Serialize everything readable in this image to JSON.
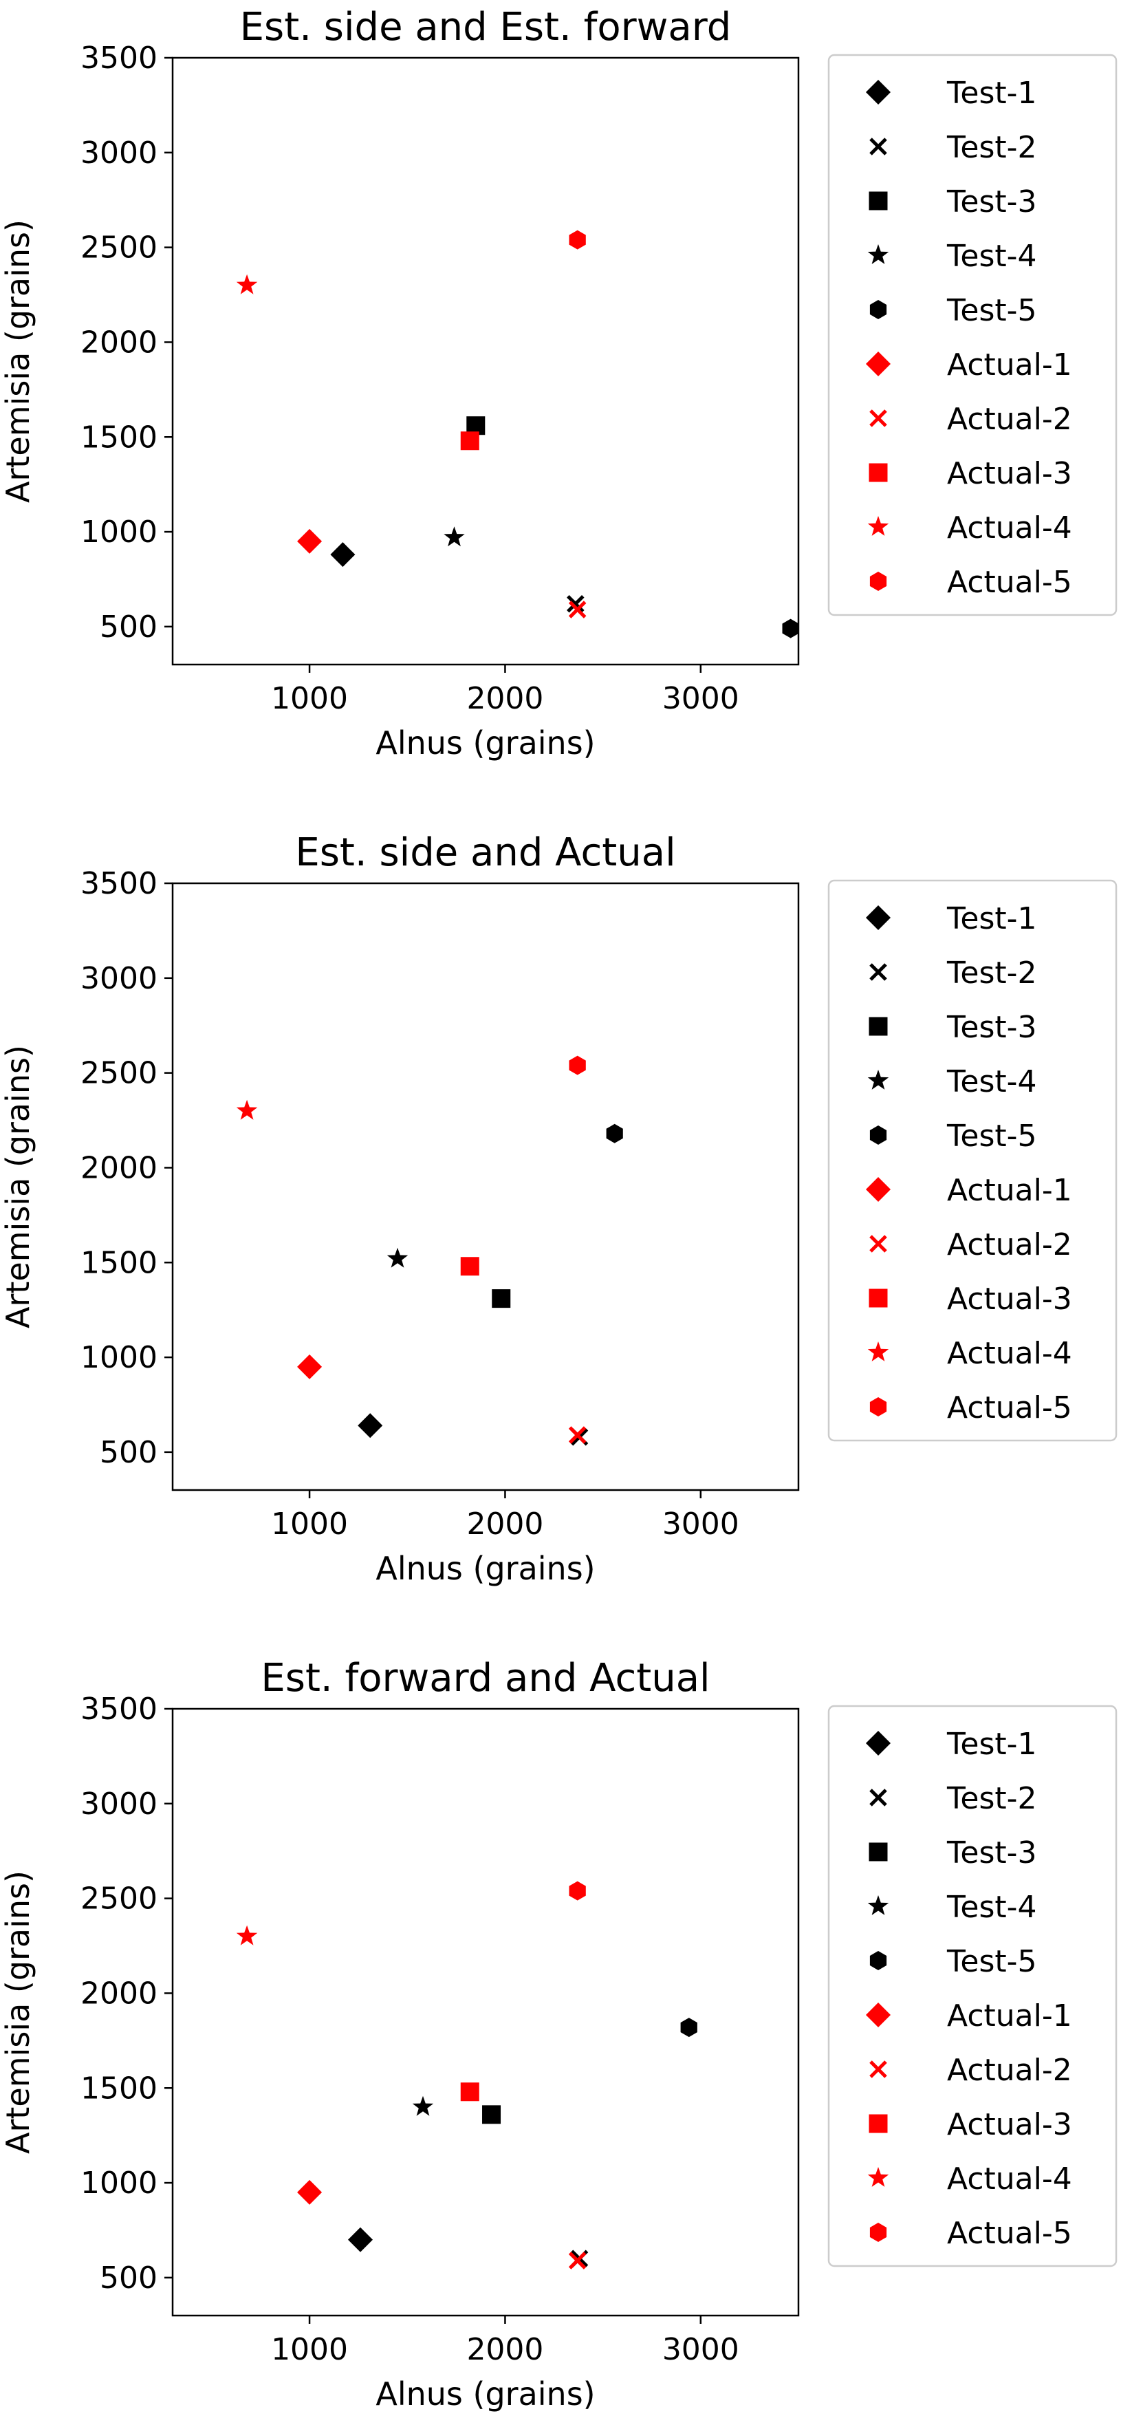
{
  "chart_data": [
    {
      "type": "scatter",
      "title": "Est. side and Est. forward",
      "xlabel": "Alnus (grains)",
      "ylabel": "Artemisia (grains)",
      "xlim": [
        300,
        3500
      ],
      "ylim": [
        300,
        3500
      ],
      "xticks": [
        1000,
        2000,
        3000
      ],
      "yticks": [
        500,
        1000,
        1500,
        2000,
        2500,
        3000,
        3500
      ],
      "grid": false,
      "legend_position": "outside-right",
      "series": [
        {
          "name": "Test-1",
          "marker": "diamond",
          "color": "#000000",
          "x": 1170,
          "y": 880
        },
        {
          "name": "Test-2",
          "marker": "x",
          "color": "#000000",
          "x": 2360,
          "y": 620
        },
        {
          "name": "Test-3",
          "marker": "square",
          "color": "#000000",
          "x": 1850,
          "y": 1560
        },
        {
          "name": "Test-4",
          "marker": "star",
          "color": "#000000",
          "x": 1740,
          "y": 970
        },
        {
          "name": "Test-5",
          "marker": "hexagon",
          "color": "#000000",
          "x": 3460,
          "y": 490
        },
        {
          "name": "Actual-1",
          "marker": "diamond",
          "color": "#ff0000",
          "x": 1000,
          "y": 950
        },
        {
          "name": "Actual-2",
          "marker": "x",
          "color": "#ff0000",
          "x": 2370,
          "y": 590
        },
        {
          "name": "Actual-3",
          "marker": "square",
          "color": "#ff0000",
          "x": 1820,
          "y": 1480
        },
        {
          "name": "Actual-4",
          "marker": "star",
          "color": "#ff0000",
          "x": 680,
          "y": 2300
        },
        {
          "name": "Actual-5",
          "marker": "hexagon",
          "color": "#ff0000",
          "x": 2370,
          "y": 2540
        }
      ]
    },
    {
      "type": "scatter",
      "title": "Est. side and Actual",
      "xlabel": "Alnus (grains)",
      "ylabel": "Artemisia (grains)",
      "xlim": [
        300,
        3500
      ],
      "ylim": [
        300,
        3500
      ],
      "xticks": [
        1000,
        2000,
        3000
      ],
      "yticks": [
        500,
        1000,
        1500,
        2000,
        2500,
        3000,
        3500
      ],
      "grid": false,
      "legend_position": "outside-right",
      "series": [
        {
          "name": "Test-1",
          "marker": "diamond",
          "color": "#000000",
          "x": 1310,
          "y": 640
        },
        {
          "name": "Test-2",
          "marker": "x",
          "color": "#000000",
          "x": 2380,
          "y": 580
        },
        {
          "name": "Test-3",
          "marker": "square",
          "color": "#000000",
          "x": 1980,
          "y": 1310
        },
        {
          "name": "Test-4",
          "marker": "star",
          "color": "#000000",
          "x": 1450,
          "y": 1520
        },
        {
          "name": "Test-5",
          "marker": "hexagon",
          "color": "#000000",
          "x": 2560,
          "y": 2180
        },
        {
          "name": "Actual-1",
          "marker": "diamond",
          "color": "#ff0000",
          "x": 1000,
          "y": 950
        },
        {
          "name": "Actual-2",
          "marker": "x",
          "color": "#ff0000",
          "x": 2370,
          "y": 590
        },
        {
          "name": "Actual-3",
          "marker": "square",
          "color": "#ff0000",
          "x": 1820,
          "y": 1480
        },
        {
          "name": "Actual-4",
          "marker": "star",
          "color": "#ff0000",
          "x": 680,
          "y": 2300
        },
        {
          "name": "Actual-5",
          "marker": "hexagon",
          "color": "#ff0000",
          "x": 2370,
          "y": 2540
        }
      ]
    },
    {
      "type": "scatter",
      "title": "Est. forward and Actual",
      "xlabel": "Alnus (grains)",
      "ylabel": "Artemisia (grains)",
      "xlim": [
        300,
        3500
      ],
      "ylim": [
        300,
        3500
      ],
      "xticks": [
        1000,
        2000,
        3000
      ],
      "yticks": [
        500,
        1000,
        1500,
        2000,
        2500,
        3000,
        3500
      ],
      "grid": false,
      "legend_position": "outside-right",
      "series": [
        {
          "name": "Test-1",
          "marker": "diamond",
          "color": "#000000",
          "x": 1260,
          "y": 700
        },
        {
          "name": "Test-2",
          "marker": "x",
          "color": "#000000",
          "x": 2380,
          "y": 600
        },
        {
          "name": "Test-3",
          "marker": "square",
          "color": "#000000",
          "x": 1930,
          "y": 1360
        },
        {
          "name": "Test-4",
          "marker": "star",
          "color": "#000000",
          "x": 1580,
          "y": 1400
        },
        {
          "name": "Test-5",
          "marker": "hexagon",
          "color": "#000000",
          "x": 2940,
          "y": 1820
        },
        {
          "name": "Actual-1",
          "marker": "diamond",
          "color": "#ff0000",
          "x": 1000,
          "y": 950
        },
        {
          "name": "Actual-2",
          "marker": "x",
          "color": "#ff0000",
          "x": 2370,
          "y": 590
        },
        {
          "name": "Actual-3",
          "marker": "square",
          "color": "#ff0000",
          "x": 1820,
          "y": 1480
        },
        {
          "name": "Actual-4",
          "marker": "star",
          "color": "#ff0000",
          "x": 680,
          "y": 2300
        },
        {
          "name": "Actual-5",
          "marker": "hexagon",
          "color": "#ff0000",
          "x": 2370,
          "y": 2540
        }
      ]
    }
  ]
}
